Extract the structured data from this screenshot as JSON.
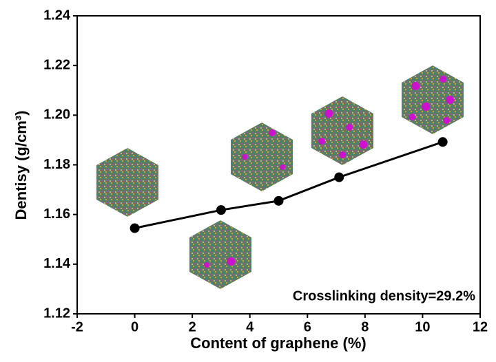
{
  "chart_data": {
    "type": "line",
    "x_label": "Content of graphene (%)",
    "y_label": "Dentisy (g/cm³)",
    "annotation": "Crosslinking density=29.2%",
    "x": [
      0,
      3,
      5,
      7.1,
      10.7
    ],
    "values": [
      1.1545,
      1.1618,
      1.1655,
      1.175,
      1.1892
    ],
    "color": "#000000",
    "xlim": [
      -2,
      12
    ],
    "xticks": [
      -2,
      0,
      2,
      4,
      6,
      8,
      10,
      12
    ],
    "ylim": [
      1.12,
      1.24
    ],
    "yticks": [
      1.12,
      1.14,
      1.16,
      1.18,
      {
        "value": 1.2,
        "label": "1.20"
      },
      1.22,
      1.24
    ],
    "grid": false
  }
}
